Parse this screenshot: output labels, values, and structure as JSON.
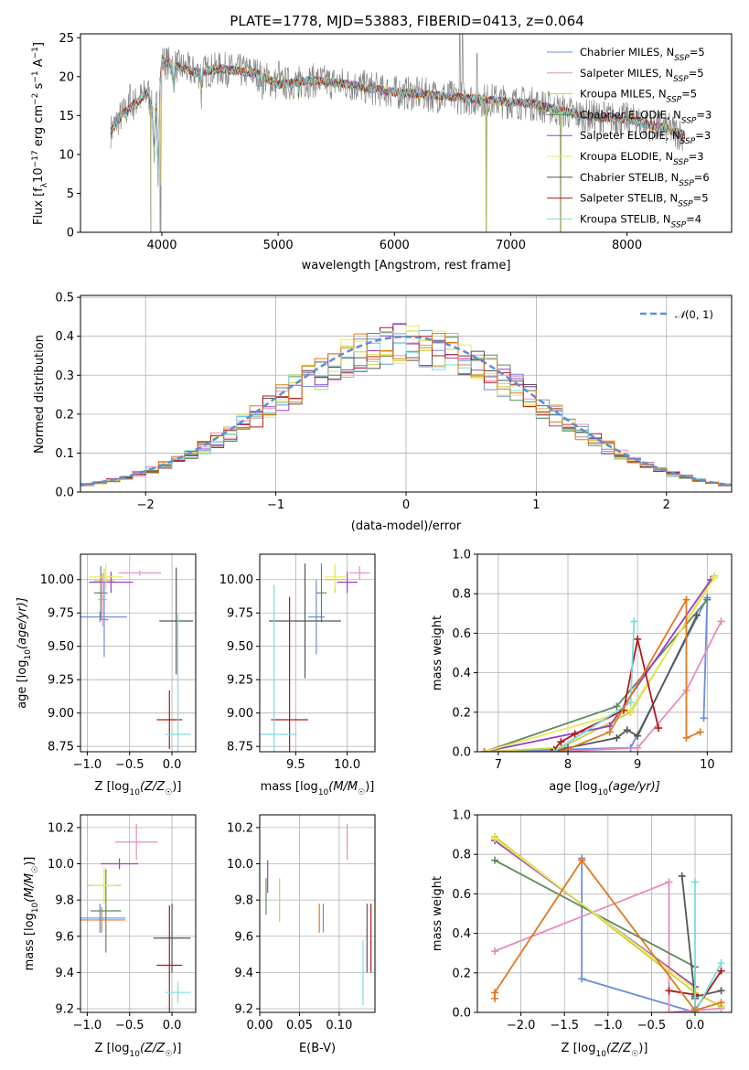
{
  "figure": {
    "title": "PLATE=1778, MJD=53883, FIBERID=0413, z=0.064"
  },
  "models": [
    {
      "name": "Chabrier MILES",
      "nssp": 5,
      "color": "#6a8fdb"
    },
    {
      "name": "Salpeter MILES",
      "nssp": 5,
      "color": "#e68bbf"
    },
    {
      "name": "Kroupa MILES",
      "nssp": 5,
      "color": "#c8d23c"
    },
    {
      "name": "Chabrier ELODIE",
      "nssp": 3,
      "color": "#5c8a5c"
    },
    {
      "name": "Salpeter ELODIE",
      "nssp": 3,
      "color": "#9b3fc9"
    },
    {
      "name": "Kroupa ELODIE",
      "nssp": 3,
      "color": "#eae85c"
    },
    {
      "name": "Chabrier STELIB",
      "nssp": 6,
      "color": "#555555"
    },
    {
      "name": "Salpeter STELIB",
      "nssp": 5,
      "color": "#b01818"
    },
    {
      "name": "Kroupa STELIB",
      "nssp": 4,
      "color": "#7ddbe0"
    }
  ],
  "legend_suffix": ", N",
  "legend_sub": "SSP",
  "spectrum": {
    "xlabel": "wavelength [Angstrom, rest frame]",
    "ylabel_main": "Flux [f",
    "ylabel_sub": "λ",
    "ylabel_rest": "10",
    "ylabel_exp": "−17",
    "ylabel_unit": " erg cm",
    "ylabel_unit_exp": "−2",
    "ylabel_unit2": " s",
    "ylabel_unit2_exp": "−1",
    "ylabel_unit3": " A",
    "ylabel_unit3_exp": "−1",
    "ylabel_close": "]",
    "xlim": [
      3300,
      8900
    ],
    "ylim": [
      0,
      25.5
    ],
    "xticks": [
      "4000",
      "5000",
      "6000",
      "7000",
      "8000"
    ],
    "yticks": [
      "0",
      "5",
      "10",
      "15",
      "20",
      "25"
    ],
    "anchors": [
      [
        3560,
        13
      ],
      [
        3650,
        15
      ],
      [
        3800,
        17
      ],
      [
        3880,
        18
      ],
      [
        3930,
        15
      ],
      [
        3970,
        17
      ],
      [
        4000,
        22
      ],
      [
        4100,
        21.5
      ],
      [
        4300,
        20.5
      ],
      [
        4500,
        21
      ],
      [
        4800,
        20.5
      ],
      [
        5000,
        19
      ],
      [
        5300,
        19.5
      ],
      [
        5600,
        19
      ],
      [
        6000,
        18
      ],
      [
        6400,
        17.5
      ],
      [
        6800,
        17
      ],
      [
        7200,
        16.5
      ],
      [
        7600,
        15
      ],
      [
        8000,
        14.5
      ],
      [
        8300,
        13.5
      ],
      [
        8600,
        12
      ]
    ],
    "absorption_lines": [
      [
        3933,
        9
      ],
      [
        3968,
        8
      ],
      [
        4101,
        17
      ],
      [
        4340,
        17
      ],
      [
        4861,
        17
      ],
      [
        5175,
        17
      ],
      [
        5890,
        17
      ],
      [
        6563,
        16
      ]
    ],
    "spikes": [
      [
        3905,
        0
      ],
      [
        3990,
        0
      ],
      [
        6790,
        0
      ],
      [
        7430,
        0
      ]
    ],
    "emission": [
      [
        6563,
        25.5
      ],
      [
        6585,
        25.5
      ],
      [
        6710,
        23
      ],
      [
        5007,
        22
      ],
      [
        3727,
        19
      ]
    ]
  },
  "residuals": {
    "xlabel": "(data-model)/error",
    "ylabel": "Normed distribution",
    "legend_label": "N(0, 1)",
    "legend_math_N": "𝒩",
    "legend_math_args": "(0, 1)",
    "xlim": [
      -2.5,
      2.5
    ],
    "ylim": [
      0,
      0.505
    ],
    "xticks": [
      "−2",
      "−1",
      "0",
      "1",
      "2"
    ],
    "yticks": [
      "0.0",
      "0.1",
      "0.2",
      "0.3",
      "0.4",
      "0.5"
    ],
    "bin_width": 0.1
  },
  "panel_age_Z": {
    "xlabel": "Z [log",
    "xlabel_sub": "10",
    "xlabel_rest": "(Z/Z",
    "xlabel_sun": "☉",
    "xlabel_close": ")]",
    "ylabel": "age  [log",
    "ylabel_sub": "10",
    "ylabel_rest": "(age/yr)]",
    "xlim": [
      -1.08,
      0.28
    ],
    "ylim": [
      8.71,
      10.19
    ],
    "xticks": [
      "−1.0",
      "−0.5",
      "0.0"
    ],
    "yticks": [
      "8.75",
      "9.00",
      "9.25",
      "9.50",
      "9.75",
      "10.00"
    ],
    "points": [
      {
        "model": 0,
        "x": -0.85,
        "xerr": 0.32,
        "y": 9.72,
        "yerr": 0.04
      },
      {
        "model": 1,
        "x": -0.38,
        "xerr": 0.25,
        "y": 10.05,
        "yerr": 0.02
      },
      {
        "model": 2,
        "x": -0.8,
        "xerr": 0.12,
        "y": 9.99,
        "yerr": 0.09
      },
      {
        "model": 3,
        "x": -0.84,
        "xerr": 0.08,
        "y": 9.9,
        "yerr": 0.2
      },
      {
        "model": 4,
        "x": -0.72,
        "xerr": 0.26,
        "y": 9.98,
        "yerr": 0.08
      },
      {
        "model": 5,
        "x": -0.78,
        "xerr": 0.2,
        "y": 10.02,
        "yerr": 0.1
      },
      {
        "model": 6,
        "x": 0.05,
        "xerr": 0.2,
        "y": 9.69,
        "yerr": 0.4
      },
      {
        "model": 7,
        "x": -0.03,
        "xerr": 0.15,
        "y": 8.95,
        "yerr": 0.22
      },
      {
        "model": 8,
        "x": 0.07,
        "xerr": 0.15,
        "y": 8.84,
        "yerr": 0.9
      },
      {
        "model": 0,
        "x": -0.8,
        "xerr": 0.05,
        "y": 9.7,
        "yerr": 0.28
      },
      {
        "model": 1,
        "x": -0.82,
        "xerr": 0.05,
        "y": 9.85,
        "yerr": 0.2
      }
    ]
  },
  "panel_age_mass": {
    "xlabel": "mass [log",
    "xlabel_sub": "10",
    "xlabel_rest": "(M/M",
    "xlabel_sun": "☉",
    "xlabel_close": ")]",
    "xlim": [
      9.15,
      10.27
    ],
    "ylim": [
      8.71,
      10.19
    ],
    "xticks": [
      "9.5",
      "10.0"
    ],
    "yticks": [
      "8.75",
      "9.00",
      "9.25",
      "9.50",
      "9.75",
      "10.00"
    ],
    "points": [
      {
        "model": 0,
        "x": 9.7,
        "xerr": 0.08,
        "y": 9.72,
        "yerr": 0.28
      },
      {
        "model": 1,
        "x": 10.12,
        "xerr": 0.1,
        "y": 10.05,
        "yerr": 0.05
      },
      {
        "model": 2,
        "x": 9.88,
        "xerr": 0.1,
        "y": 10.0,
        "yerr": 0.1
      },
      {
        "model": 3,
        "x": 9.75,
        "xerr": 0.05,
        "y": 9.9,
        "yerr": 0.22
      },
      {
        "model": 4,
        "x": 10.0,
        "xerr": 0.1,
        "y": 9.98,
        "yerr": 0.08
      },
      {
        "model": 5,
        "x": 9.88,
        "xerr": 0.1,
        "y": 10.02,
        "yerr": 0.1
      },
      {
        "model": 6,
        "x": 9.59,
        "xerr": 0.35,
        "y": 9.69,
        "yerr": 0.43
      },
      {
        "model": 7,
        "x": 9.44,
        "xerr": 0.18,
        "y": 8.95,
        "yerr": 0.92
      },
      {
        "model": 8,
        "x": 9.29,
        "xerr": 0.22,
        "y": 8.84,
        "yerr": 1.12
      }
    ]
  },
  "panel_weight_age": {
    "xlabel": "age  [log",
    "xlabel_sub": "10",
    "xlabel_rest": "(age/yr)]",
    "ylabel": "mass weight",
    "xlim": [
      6.7,
      10.35
    ],
    "ylim": [
      0,
      1
    ],
    "xticks": [
      "7",
      "8",
      "9",
      "10"
    ],
    "yticks": [
      "0.0",
      "0.2",
      "0.4",
      "0.6",
      "0.8",
      "1.0"
    ],
    "series": [
      {
        "model": 0,
        "x": [
          6.8,
          7.8,
          8.9,
          10.0,
          9.95
        ],
        "y": [
          0.0,
          0.01,
          0.02,
          0.78,
          0.17
        ]
      },
      {
        "model": 1,
        "x": [
          6.8,
          7.8,
          9.0,
          9.7,
          10.2
        ],
        "y": [
          0.0,
          0.0,
          0.02,
          0.31,
          0.66
        ]
      },
      {
        "model": 2,
        "x": [
          6.8,
          7.9,
          8.9,
          10.1,
          10.05
        ],
        "y": [
          0.0,
          0.02,
          0.2,
          0.89,
          0.87
        ]
      },
      {
        "model": 3,
        "x": [
          6.8,
          8.7,
          10.0
        ],
        "y": [
          0.0,
          0.23,
          0.77
        ]
      },
      {
        "model": 4,
        "x": [
          6.8,
          8.6,
          10.05
        ],
        "y": [
          0.0,
          0.13,
          0.87
        ]
      },
      {
        "model": 5,
        "x": [
          6.8,
          8.9,
          10.1
        ],
        "y": [
          0.0,
          0.21,
          0.88
        ]
      },
      {
        "model": 6,
        "x": [
          7.8,
          8.0,
          8.7,
          8.85,
          9.0,
          9.85
        ],
        "y": [
          0.0,
          0.02,
          0.07,
          0.11,
          0.08,
          0.69
        ]
      },
      {
        "model": 7,
        "x": [
          7.8,
          7.9,
          8.1,
          8.8,
          9.0,
          9.3
        ],
        "y": [
          0.01,
          0.05,
          0.09,
          0.21,
          0.57,
          0.12
        ]
      },
      {
        "model": 8,
        "x": [
          7.8,
          8.9,
          8.95
        ],
        "y": [
          0.0,
          0.25,
          0.66
        ]
      },
      {
        "model": 9,
        "x": [
          6.8,
          7.9,
          8.6,
          9.7,
          9.7,
          9.9
        ],
        "y": [
          0.0,
          0.0,
          0.1,
          0.77,
          0.07,
          0.1
        ]
      }
    ],
    "extra_color": "#e07820"
  },
  "panel_mass_Z": {
    "xlabel": "Z [log",
    "xlabel_sub": "10",
    "xlabel_rest": "(Z/Z",
    "xlabel_sun": "☉",
    "xlabel_close": ")]",
    "ylabel": "mass [log",
    "ylabel_sub": "10",
    "ylabel_rest": "(M/M",
    "ylabel_sun": "☉",
    "ylabel_close": ")]",
    "xlim": [
      -1.08,
      0.28
    ],
    "ylim": [
      9.18,
      10.27
    ],
    "xticks": [
      "−1.0",
      "−0.5",
      "0.0"
    ],
    "yticks": [
      "9.2",
      "9.4",
      "9.6",
      "9.8",
      "10.0",
      "10.2"
    ],
    "points": [
      {
        "model": 0,
        "x": -0.85,
        "xerr": 0.3,
        "y": 9.7,
        "yerr": 0.08
      },
      {
        "model": 1,
        "x": -0.42,
        "xerr": 0.25,
        "y": 10.12,
        "yerr": 0.1
      },
      {
        "model": 2,
        "x": -0.8,
        "xerr": 0.2,
        "y": 9.88,
        "yerr": 0.1
      },
      {
        "model": 3,
        "x": -0.78,
        "xerr": 0.18,
        "y": 9.74,
        "yerr": 0.23
      },
      {
        "model": 4,
        "x": -0.62,
        "xerr": 0.22,
        "y": 10.0,
        "yerr": 0.03
      },
      {
        "model": 5,
        "x": -0.8,
        "xerr": 0.15,
        "y": 9.88,
        "yerr": 0.1
      },
      {
        "model": 6,
        "x": 0.0,
        "xerr": 0.22,
        "y": 9.59,
        "yerr": 0.19
      },
      {
        "model": 7,
        "x": -0.03,
        "xerr": 0.15,
        "y": 9.44,
        "yerr": 0.33
      },
      {
        "model": 8,
        "x": 0.07,
        "xerr": 0.15,
        "y": 9.29,
        "yerr": 0.06
      },
      {
        "model": 9,
        "x": -0.83,
        "xerr": 0.28,
        "y": 9.69,
        "yerr": 0.07
      }
    ]
  },
  "panel_mass_ebv": {
    "xlabel": "E(B-V)",
    "xlim": [
      0.0,
      0.145
    ],
    "ylim": [
      9.18,
      10.27
    ],
    "xticks": [
      "0.00",
      "0.05",
      "0.10"
    ],
    "yticks": [
      "9.2",
      "9.4",
      "9.6",
      "9.8",
      "10.0",
      "10.2"
    ],
    "points": [
      {
        "model": 0,
        "x": 0.08,
        "y": 9.7,
        "yerr": 0.08
      },
      {
        "model": 1,
        "x": 0.11,
        "y": 10.12,
        "yerr": 0.1
      },
      {
        "model": 2,
        "x": 0.025,
        "y": 9.8,
        "yerr": 0.12
      },
      {
        "model": 3,
        "x": 0.008,
        "y": 9.82,
        "yerr": 0.1
      },
      {
        "model": 4,
        "x": 0.01,
        "y": 9.93,
        "yerr": 0.09
      },
      {
        "model": 6,
        "x": 0.135,
        "y": 9.59,
        "yerr": 0.19
      },
      {
        "model": 7,
        "x": 0.14,
        "y": 9.59,
        "yerr": 0.19
      },
      {
        "model": 8,
        "x": 0.13,
        "y": 9.4,
        "yerr": 0.18
      },
      {
        "model": 9,
        "x": 0.075,
        "y": 9.7,
        "yerr": 0.08
      }
    ]
  },
  "panel_weight_Z": {
    "xlabel": "Z [log",
    "xlabel_sub": "10",
    "xlabel_rest": "(Z/Z",
    "xlabel_sun": "☉",
    "xlabel_close": ")]",
    "ylabel": "mass weight",
    "xlim": [
      -2.5,
      0.42
    ],
    "ylim": [
      0,
      1
    ],
    "xticks": [
      "−2.0",
      "−1.5",
      "−1.0",
      "−0.5",
      "0.0"
    ],
    "yticks": [
      "0.0",
      "0.2",
      "0.4",
      "0.6",
      "0.8",
      "1.0"
    ],
    "series": [
      {
        "model": 0,
        "x": [
          -1.3,
          -1.3,
          -1.3,
          0.0,
          0.0
        ],
        "y": [
          0.78,
          0.17,
          0.17,
          0.0,
          0.02
        ]
      },
      {
        "model": 1,
        "x": [
          -2.3,
          -0.3,
          -0.3,
          0.3
        ],
        "y": [
          0.31,
          0.66,
          0.0,
          0.02
        ]
      },
      {
        "model": 2,
        "x": [
          -2.3,
          0.0,
          0.3
        ],
        "y": [
          0.89,
          0.1,
          0.03
        ]
      },
      {
        "model": 3,
        "x": [
          -2.3,
          0.0,
          0.0
        ],
        "y": [
          0.77,
          0.23,
          0.0
        ]
      },
      {
        "model": 4,
        "x": [
          -2.3,
          0.0
        ],
        "y": [
          0.87,
          0.13
        ]
      },
      {
        "model": 5,
        "x": [
          -2.3,
          0.0
        ],
        "y": [
          0.88,
          0.12
        ]
      },
      {
        "model": 6,
        "x": [
          -0.15,
          0.0,
          0.0,
          0.3
        ],
        "y": [
          0.69,
          0.07,
          0.08,
          0.11
        ]
      },
      {
        "model": 7,
        "x": [
          -0.3,
          0.0,
          0.0,
          0.3
        ],
        "y": [
          0.11,
          0.09,
          0.01,
          0.21
        ]
      },
      {
        "model": 8,
        "x": [
          0.0,
          0.0,
          0.3
        ],
        "y": [
          0.66,
          0.0,
          0.25
        ]
      },
      {
        "model": 9,
        "x": [
          -2.3,
          -2.3,
          -1.3,
          -1.3,
          0.0,
          0.3
        ],
        "y": [
          0.07,
          0.1,
          0.77,
          0.77,
          0.01,
          0.05
        ]
      }
    ]
  },
  "chart_data": [
    {
      "type": "line",
      "title": "PLATE=1778, MJD=53883, FIBERID=0413, z=0.064",
      "xlabel": "wavelength [Angstrom, rest frame]",
      "ylabel": "Flux [fλ10−17 erg cm−2 s−1 A−1]",
      "xlim": [
        3300,
        8900
      ],
      "ylim": [
        0,
        25.5
      ],
      "legend": "top-right",
      "series": [
        {
          "name": "Chabrier MILES, NSSP=5"
        },
        {
          "name": "Salpeter MILES, NSSP=5"
        },
        {
          "name": "Kroupa MILES, NSSP=5"
        },
        {
          "name": "Chabrier ELODIE, NSSP=3"
        },
        {
          "name": "Salpeter ELODIE, NSSP=3"
        },
        {
          "name": "Kroupa ELODIE, NSSP=3"
        },
        {
          "name": "Chabrier STELIB, NSSP=6"
        },
        {
          "name": "Salpeter STELIB, NSSP=5"
        },
        {
          "name": "Kroupa STELIB, NSSP=4"
        }
      ]
    },
    {
      "type": "area",
      "xlabel": "(data-model)/error",
      "ylabel": "Normed distribution",
      "xlim": [
        -2.5,
        2.5
      ],
      "ylim": [
        0,
        0.5
      ],
      "legend": "top-right",
      "series": [
        {
          "name": "𝒩(0, 1)"
        }
      ]
    },
    {
      "type": "scatter",
      "xlabel": "Z [log10(Z/Z☉)]",
      "ylabel": "age [log10(age/yr)]"
    },
    {
      "type": "scatter",
      "xlabel": "mass [log10(M/M☉)]"
    },
    {
      "type": "line",
      "xlabel": "age [log10(age/yr)]",
      "ylabel": "mass weight",
      "ylim": [
        0,
        1
      ]
    },
    {
      "type": "scatter",
      "xlabel": "Z [log10(Z/Z☉)]",
      "ylabel": "mass [log10(M/M☉)]"
    },
    {
      "type": "scatter",
      "xlabel": "E(B-V)"
    },
    {
      "type": "line",
      "xlabel": "Z [log10(Z/Z☉)]",
      "ylabel": "mass weight",
      "ylim": [
        0,
        1
      ]
    }
  ]
}
